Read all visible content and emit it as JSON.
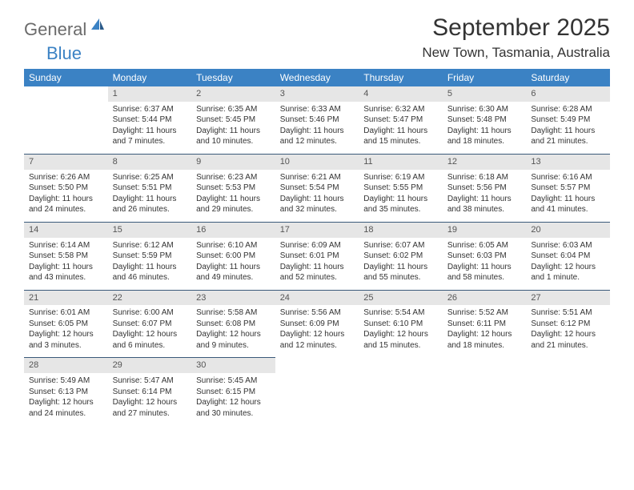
{
  "logo": {
    "main": "General",
    "sub": "Blue"
  },
  "title": "September 2025",
  "location": "New Town, Tasmania, Australia",
  "colors": {
    "header_bg": "#3b82c4",
    "header_text": "#ffffff",
    "daynum_bg": "#e6e6e6",
    "row_border": "#3b5a7a",
    "body_text": "#333333",
    "logo_sub": "#3b82c4",
    "logo_main": "#6b6b6b"
  },
  "weekdays": [
    "Sunday",
    "Monday",
    "Tuesday",
    "Wednesday",
    "Thursday",
    "Friday",
    "Saturday"
  ],
  "weeks": [
    [
      null,
      {
        "n": "1",
        "sr": "Sunrise: 6:37 AM",
        "ss": "Sunset: 5:44 PM",
        "dl": "Daylight: 11 hours and 7 minutes."
      },
      {
        "n": "2",
        "sr": "Sunrise: 6:35 AM",
        "ss": "Sunset: 5:45 PM",
        "dl": "Daylight: 11 hours and 10 minutes."
      },
      {
        "n": "3",
        "sr": "Sunrise: 6:33 AM",
        "ss": "Sunset: 5:46 PM",
        "dl": "Daylight: 11 hours and 12 minutes."
      },
      {
        "n": "4",
        "sr": "Sunrise: 6:32 AM",
        "ss": "Sunset: 5:47 PM",
        "dl": "Daylight: 11 hours and 15 minutes."
      },
      {
        "n": "5",
        "sr": "Sunrise: 6:30 AM",
        "ss": "Sunset: 5:48 PM",
        "dl": "Daylight: 11 hours and 18 minutes."
      },
      {
        "n": "6",
        "sr": "Sunrise: 6:28 AM",
        "ss": "Sunset: 5:49 PM",
        "dl": "Daylight: 11 hours and 21 minutes."
      }
    ],
    [
      {
        "n": "7",
        "sr": "Sunrise: 6:26 AM",
        "ss": "Sunset: 5:50 PM",
        "dl": "Daylight: 11 hours and 24 minutes."
      },
      {
        "n": "8",
        "sr": "Sunrise: 6:25 AM",
        "ss": "Sunset: 5:51 PM",
        "dl": "Daylight: 11 hours and 26 minutes."
      },
      {
        "n": "9",
        "sr": "Sunrise: 6:23 AM",
        "ss": "Sunset: 5:53 PM",
        "dl": "Daylight: 11 hours and 29 minutes."
      },
      {
        "n": "10",
        "sr": "Sunrise: 6:21 AM",
        "ss": "Sunset: 5:54 PM",
        "dl": "Daylight: 11 hours and 32 minutes."
      },
      {
        "n": "11",
        "sr": "Sunrise: 6:19 AM",
        "ss": "Sunset: 5:55 PM",
        "dl": "Daylight: 11 hours and 35 minutes."
      },
      {
        "n": "12",
        "sr": "Sunrise: 6:18 AM",
        "ss": "Sunset: 5:56 PM",
        "dl": "Daylight: 11 hours and 38 minutes."
      },
      {
        "n": "13",
        "sr": "Sunrise: 6:16 AM",
        "ss": "Sunset: 5:57 PM",
        "dl": "Daylight: 11 hours and 41 minutes."
      }
    ],
    [
      {
        "n": "14",
        "sr": "Sunrise: 6:14 AM",
        "ss": "Sunset: 5:58 PM",
        "dl": "Daylight: 11 hours and 43 minutes."
      },
      {
        "n": "15",
        "sr": "Sunrise: 6:12 AM",
        "ss": "Sunset: 5:59 PM",
        "dl": "Daylight: 11 hours and 46 minutes."
      },
      {
        "n": "16",
        "sr": "Sunrise: 6:10 AM",
        "ss": "Sunset: 6:00 PM",
        "dl": "Daylight: 11 hours and 49 minutes."
      },
      {
        "n": "17",
        "sr": "Sunrise: 6:09 AM",
        "ss": "Sunset: 6:01 PM",
        "dl": "Daylight: 11 hours and 52 minutes."
      },
      {
        "n": "18",
        "sr": "Sunrise: 6:07 AM",
        "ss": "Sunset: 6:02 PM",
        "dl": "Daylight: 11 hours and 55 minutes."
      },
      {
        "n": "19",
        "sr": "Sunrise: 6:05 AM",
        "ss": "Sunset: 6:03 PM",
        "dl": "Daylight: 11 hours and 58 minutes."
      },
      {
        "n": "20",
        "sr": "Sunrise: 6:03 AM",
        "ss": "Sunset: 6:04 PM",
        "dl": "Daylight: 12 hours and 1 minute."
      }
    ],
    [
      {
        "n": "21",
        "sr": "Sunrise: 6:01 AM",
        "ss": "Sunset: 6:05 PM",
        "dl": "Daylight: 12 hours and 3 minutes."
      },
      {
        "n": "22",
        "sr": "Sunrise: 6:00 AM",
        "ss": "Sunset: 6:07 PM",
        "dl": "Daylight: 12 hours and 6 minutes."
      },
      {
        "n": "23",
        "sr": "Sunrise: 5:58 AM",
        "ss": "Sunset: 6:08 PM",
        "dl": "Daylight: 12 hours and 9 minutes."
      },
      {
        "n": "24",
        "sr": "Sunrise: 5:56 AM",
        "ss": "Sunset: 6:09 PM",
        "dl": "Daylight: 12 hours and 12 minutes."
      },
      {
        "n": "25",
        "sr": "Sunrise: 5:54 AM",
        "ss": "Sunset: 6:10 PM",
        "dl": "Daylight: 12 hours and 15 minutes."
      },
      {
        "n": "26",
        "sr": "Sunrise: 5:52 AM",
        "ss": "Sunset: 6:11 PM",
        "dl": "Daylight: 12 hours and 18 minutes."
      },
      {
        "n": "27",
        "sr": "Sunrise: 5:51 AM",
        "ss": "Sunset: 6:12 PM",
        "dl": "Daylight: 12 hours and 21 minutes."
      }
    ],
    [
      {
        "n": "28",
        "sr": "Sunrise: 5:49 AM",
        "ss": "Sunset: 6:13 PM",
        "dl": "Daylight: 12 hours and 24 minutes."
      },
      {
        "n": "29",
        "sr": "Sunrise: 5:47 AM",
        "ss": "Sunset: 6:14 PM",
        "dl": "Daylight: 12 hours and 27 minutes."
      },
      {
        "n": "30",
        "sr": "Sunrise: 5:45 AM",
        "ss": "Sunset: 6:15 PM",
        "dl": "Daylight: 12 hours and 30 minutes."
      },
      null,
      null,
      null,
      null
    ]
  ]
}
